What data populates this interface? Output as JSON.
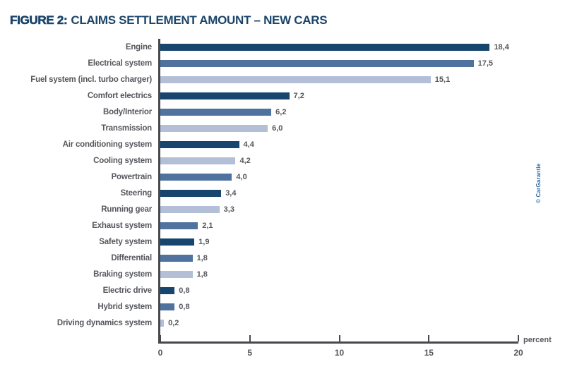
{
  "header": {
    "figure_label": "FIGURE 2:",
    "title_rest": "CLAIMS SETTLEMENT AMOUNT – NEW CARS"
  },
  "colors": {
    "dark": "#17456e",
    "medium": "#4f739e",
    "light": "#b2bfd7",
    "title_navy": "#1a4469",
    "label_gray": "#55575c",
    "axis_gray": "#47494e",
    "copyright_blue": "#2e6da4"
  },
  "chart_data": {
    "type": "bar",
    "orientation": "horizontal",
    "title": "FIGURE 2: CLAIMS SETTLEMENT AMOUNT – NEW CARS",
    "xlabel": "percent",
    "xlim": [
      0,
      20
    ],
    "xticks": [
      0,
      5,
      10,
      15,
      20
    ],
    "grid": false,
    "legend": false,
    "categories": [
      "Engine",
      "Electrical system",
      "Fuel system (incl. turbo charger)",
      "Comfort electrics",
      "Body/Interior",
      "Transmission",
      "Air conditioning system",
      "Cooling system",
      "Powertrain",
      "Steering",
      "Running gear",
      "Exhaust system",
      "Safety system",
      "Differential",
      "Braking system",
      "Electric drive",
      "Hybrid system",
      "Driving dynamics system"
    ],
    "values": [
      18.4,
      17.5,
      15.1,
      7.2,
      6.2,
      6.0,
      4.4,
      4.2,
      4.0,
      3.4,
      3.3,
      2.1,
      1.9,
      1.8,
      1.8,
      0.8,
      0.8,
      0.2
    ],
    "value_labels": [
      "18,4",
      "17,5",
      "15,1",
      "7,2",
      "6,2",
      "6,0",
      "4,4",
      "4,2",
      "4,0",
      "3,4",
      "3,3",
      "2,1",
      "1,9",
      "1,8",
      "1,8",
      "0,8",
      "0,8",
      "0,2"
    ],
    "bar_colors": [
      "dark",
      "medium",
      "light",
      "dark",
      "medium",
      "light",
      "dark",
      "light",
      "medium",
      "dark",
      "light",
      "medium",
      "dark",
      "medium",
      "light",
      "dark",
      "medium",
      "light"
    ]
  },
  "axis": {
    "percent_label": "percent"
  },
  "copyright_text": "© CarGarantie"
}
